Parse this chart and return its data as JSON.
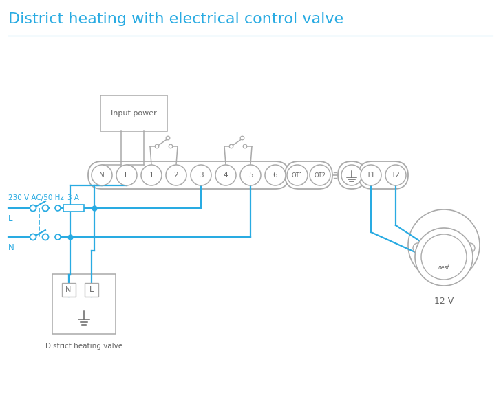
{
  "title": "District heating with electrical control valve",
  "title_color": "#29abe2",
  "title_fontsize": 16,
  "bg_color": "#ffffff",
  "line_color": "#29abe2",
  "device_color": "#aaaaaa",
  "terminal_labels": [
    "N",
    "L",
    "1",
    "2",
    "3",
    "4",
    "5",
    "6"
  ],
  "ot_labels": [
    "OT1",
    "OT2"
  ],
  "t_labels": [
    "T1",
    "T2"
  ],
  "text_color": "#666666",
  "label_230v": "230 V AC/50 Hz",
  "label_L": "L",
  "label_N": "N",
  "label_3A": "3 A",
  "label_input": "Input power",
  "label_dhv": "District heating valve",
  "label_12v": "12 V",
  "label_nest": "nest",
  "figwidth": 7.28,
  "figheight": 5.94,
  "dpi": 100
}
